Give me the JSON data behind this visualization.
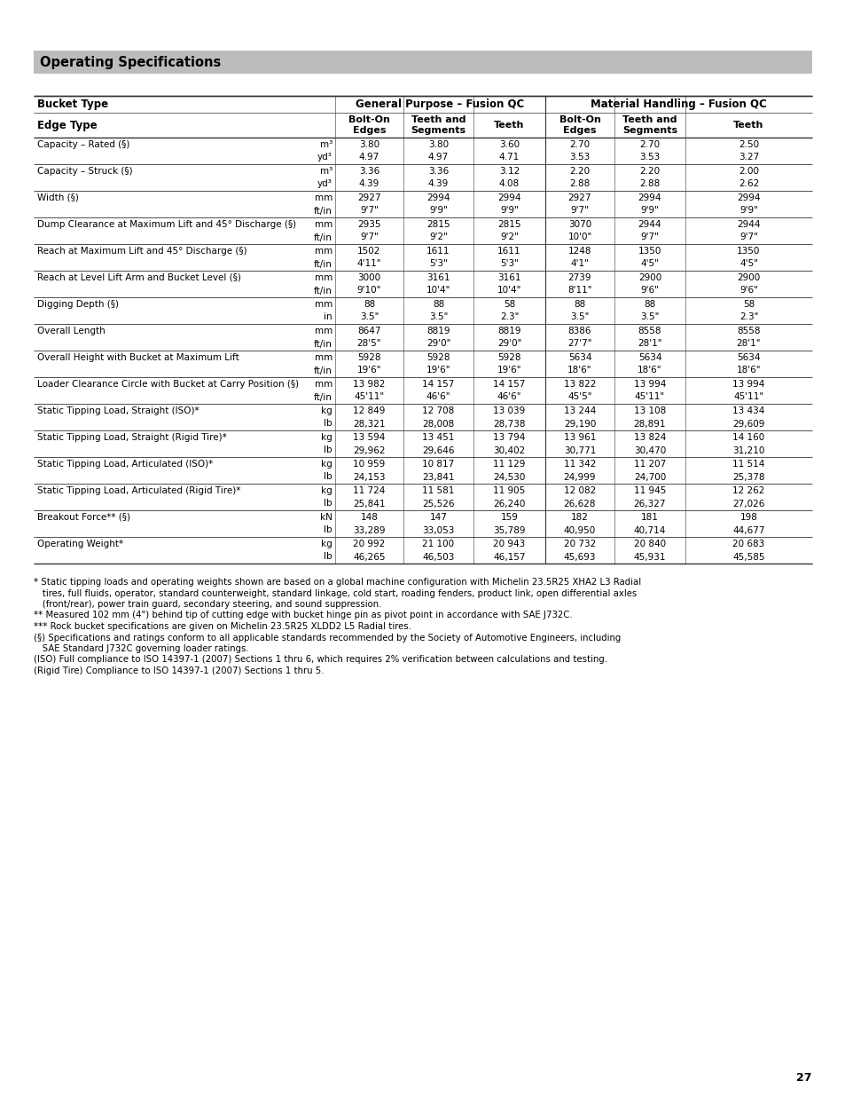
{
  "title": "Operating Specifications",
  "rows": [
    [
      "Capacity – Rated (§)",
      "m³",
      "3.80",
      "3.80",
      "3.60",
      "2.70",
      "2.70",
      "2.50"
    ],
    [
      "",
      "yd³",
      "4.97",
      "4.97",
      "4.71",
      "3.53",
      "3.53",
      "3.27"
    ],
    [
      "Capacity – Struck (§)",
      "m³",
      "3.36",
      "3.36",
      "3.12",
      "2.20",
      "2.20",
      "2.00"
    ],
    [
      "",
      "yd³",
      "4.39",
      "4.39",
      "4.08",
      "2.88",
      "2.88",
      "2.62"
    ],
    [
      "Width (§)",
      "mm",
      "2927",
      "2994",
      "2994",
      "2927",
      "2994",
      "2994"
    ],
    [
      "",
      "ft/in",
      "9'7\"",
      "9'9\"",
      "9'9\"",
      "9'7\"",
      "9'9\"",
      "9'9\""
    ],
    [
      "Dump Clearance at Maximum Lift and 45° Discharge (§)",
      "mm",
      "2935",
      "2815",
      "2815",
      "3070",
      "2944",
      "2944"
    ],
    [
      "",
      "ft/in",
      "9'7\"",
      "9'2\"",
      "9'2\"",
      "10'0\"",
      "9'7\"",
      "9'7\""
    ],
    [
      "Reach at Maximum Lift and 45° Discharge (§)",
      "mm",
      "1502",
      "1611",
      "1611",
      "1248",
      "1350",
      "1350"
    ],
    [
      "",
      "ft/in",
      "4'11\"",
      "5'3\"",
      "5'3\"",
      "4'1\"",
      "4'5\"",
      "4'5\""
    ],
    [
      "Reach at Level Lift Arm and Bucket Level (§)",
      "mm",
      "3000",
      "3161",
      "3161",
      "2739",
      "2900",
      "2900"
    ],
    [
      "",
      "ft/in",
      "9'10\"",
      "10'4\"",
      "10'4\"",
      "8'11\"",
      "9'6\"",
      "9'6\""
    ],
    [
      "Digging Depth (§)",
      "mm",
      "88",
      "88",
      "58",
      "88",
      "88",
      "58"
    ],
    [
      "",
      "in",
      "3.5\"",
      "3.5\"",
      "2.3\"",
      "3.5\"",
      "3.5\"",
      "2.3\""
    ],
    [
      "Overall Length",
      "mm",
      "8647",
      "8819",
      "8819",
      "8386",
      "8558",
      "8558"
    ],
    [
      "",
      "ft/in",
      "28'5\"",
      "29'0\"",
      "29'0\"",
      "27'7\"",
      "28'1\"",
      "28'1\""
    ],
    [
      "Overall Height with Bucket at Maximum Lift",
      "mm",
      "5928",
      "5928",
      "5928",
      "5634",
      "5634",
      "5634"
    ],
    [
      "",
      "ft/in",
      "19'6\"",
      "19'6\"",
      "19'6\"",
      "18'6\"",
      "18'6\"",
      "18'6\""
    ],
    [
      "Loader Clearance Circle with Bucket at Carry Position (§)",
      "mm",
      "13 982",
      "14 157",
      "14 157",
      "13 822",
      "13 994",
      "13 994"
    ],
    [
      "",
      "ft/in",
      "45'11\"",
      "46'6\"",
      "46'6\"",
      "45'5\"",
      "45'11\"",
      "45'11\""
    ],
    [
      "Static Tipping Load, Straight (ISO)*",
      "kg",
      "12 849",
      "12 708",
      "13 039",
      "13 244",
      "13 108",
      "13 434"
    ],
    [
      "",
      "lb",
      "28,321",
      "28,008",
      "28,738",
      "29,190",
      "28,891",
      "29,609"
    ],
    [
      "Static Tipping Load, Straight (Rigid Tire)*",
      "kg",
      "13 594",
      "13 451",
      "13 794",
      "13 961",
      "13 824",
      "14 160"
    ],
    [
      "",
      "lb",
      "29,962",
      "29,646",
      "30,402",
      "30,771",
      "30,470",
      "31,210"
    ],
    [
      "Static Tipping Load, Articulated (ISO)*",
      "kg",
      "10 959",
      "10 817",
      "11 129",
      "11 342",
      "11 207",
      "11 514"
    ],
    [
      "",
      "lb",
      "24,153",
      "23,841",
      "24,530",
      "24,999",
      "24,700",
      "25,378"
    ],
    [
      "Static Tipping Load, Articulated (Rigid Tire)*",
      "kg",
      "11 724",
      "11 581",
      "11 905",
      "12 082",
      "11 945",
      "12 262"
    ],
    [
      "",
      "lb",
      "25,841",
      "25,526",
      "26,240",
      "26,628",
      "26,327",
      "27,026"
    ],
    [
      "Breakout Force** (§)",
      "kN",
      "148",
      "147",
      "159",
      "182",
      "181",
      "198"
    ],
    [
      "",
      "lb",
      "33,289",
      "33,053",
      "35,789",
      "40,950",
      "40,714",
      "44,677"
    ],
    [
      "Operating Weight*",
      "kg",
      "20 992",
      "21 100",
      "20 943",
      "20 732",
      "20 840",
      "20 683"
    ],
    [
      "",
      "lb",
      "46,265",
      "46,503",
      "46,157",
      "45,693",
      "45,931",
      "45,585"
    ]
  ],
  "footnotes": [
    [
      "*",
      "Static tipping loads and operating weights shown are based on a global machine configuration with Michelin 23.5R25 XHA2 L3 Radial\n   tires, full fluids, operator, standard counterweight, standard linkage, cold start, roading fenders, product link, open differential axles\n   (front/rear), power train guard, secondary steering, and sound suppression."
    ],
    [
      "**",
      "Measured 102 mm (4\") behind tip of cutting edge with bucket hinge pin as pivot point in accordance with SAE J732C."
    ],
    [
      "***",
      "Rock bucket specifications are given on Michelin 23.5R25 XLDD2 L5 Radial tires."
    ],
    [
      "(§)",
      "Specifications and ratings conform to all applicable standards recommended by the Society of Automotive Engineers, including\n    SAE Standard J732C governing loader ratings."
    ],
    [
      "(ISO)",
      "Full compliance to ISO 14397-1 (2007) Sections 1 thru 6, which requires 2% verification between calculations and testing."
    ],
    [
      "(Rigid Tire)",
      "Compliance to ISO 14397-1 (2007) Sections 1 thru 5."
    ]
  ],
  "page_number": "27",
  "bg_color": "#ffffff",
  "title_bar_color": "#bcbcbc",
  "table_header_color": "#ffffff"
}
